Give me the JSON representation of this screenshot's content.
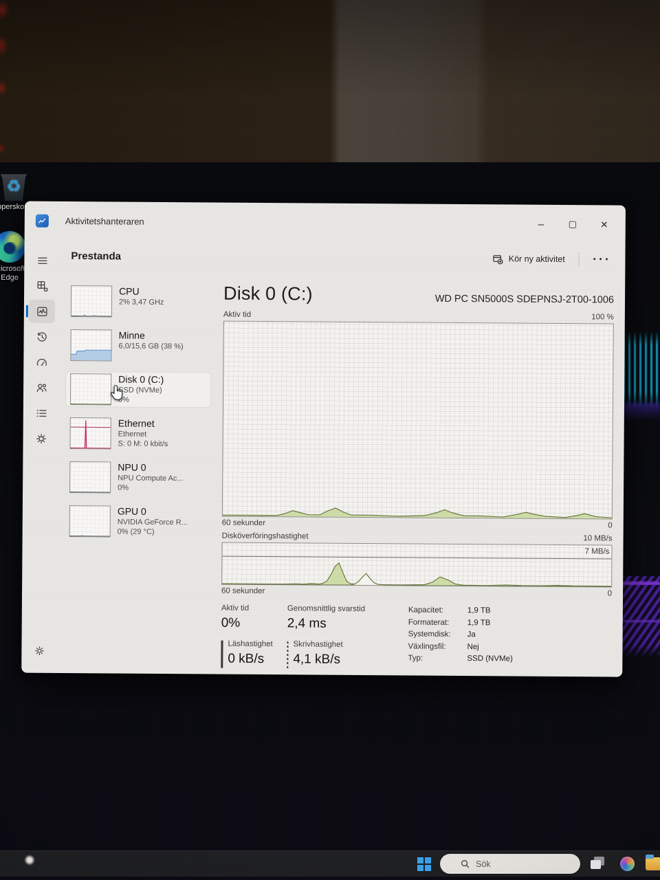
{
  "window": {
    "title": "Aktivitetshanteraren",
    "page_title": "Prestanda",
    "run_new_task_label": "Kör ny aktivitet",
    "more_options_glyph": "• • •",
    "minimize_glyph": "–",
    "maximize_glyph": "▢",
    "close_glyph": "×"
  },
  "nav": {
    "items": [
      "menu",
      "processes",
      "performance",
      "app-history",
      "startup-apps",
      "users",
      "details",
      "services",
      "settings"
    ],
    "selected": "performance"
  },
  "cards": [
    {
      "title": "CPU",
      "line1": "2% 3,47 GHz",
      "line2": ""
    },
    {
      "title": "Minne",
      "line1": "6,0/15,6 GB (38 %)",
      "line2": ""
    },
    {
      "title": "Disk 0 (C:)",
      "line1": "SSD (NVMe)",
      "line2": "0%"
    },
    {
      "title": "Ethernet",
      "line1": "Ethernet",
      "line2": "S: 0 M: 0 kbit/s"
    },
    {
      "title": "NPU 0",
      "line1": "NPU Compute Ac...",
      "line2": "0%"
    },
    {
      "title": "GPU 0",
      "line1": "NVIDIA GeForce R...",
      "line2": "0% (29 °C)"
    }
  ],
  "detail": {
    "title": "Disk 0 (C:)",
    "device": "WD PC SN5000S SDEPNSJ-2T00-1006",
    "chart1_label": "Aktiv tid",
    "chart1_max": "100 %",
    "chart1_xlabel": "60 sekunder",
    "chart1_min": "0",
    "chart2_label": "Disköverföringshastighet",
    "chart2_max": "10 MB/s",
    "chart2_threshold": "7 MB/s",
    "chart2_xlabel": "60 sekunder",
    "chart2_min": "0",
    "stats_left": [
      {
        "label": "Aktiv tid",
        "value": "0%",
        "indicator": "none"
      },
      {
        "label": "Genomsnittlig svarstid",
        "value": "2,4 ms",
        "indicator": "none"
      },
      {
        "label": "Läshastighet",
        "value": "0 kB/s",
        "indicator": "solid"
      },
      {
        "label": "Skrivhastighet",
        "value": "4,1 kB/s",
        "indicator": "dotted"
      }
    ],
    "stats_right": [
      {
        "label": "Kapacitet:",
        "value": "1,9 TB"
      },
      {
        "label": "Formaterat:",
        "value": "1,9 TB"
      },
      {
        "label": "Systemdisk:",
        "value": "Ja"
      },
      {
        "label": "Växlingsfil:",
        "value": "Nej"
      },
      {
        "label": "Typ:",
        "value": "SSD (NVMe)"
      }
    ]
  },
  "desktop": {
    "icons": [
      {
        "label": "Papperskorgen",
        "glyph": "♻"
      },
      {
        "label": "Microsoft Edge"
      }
    ]
  },
  "taskbar": {
    "search_placeholder": "Sök"
  },
  "colors": {
    "accent": "#0067c0",
    "disk_green_fill": "rgba(201,216,156,0.85)",
    "disk_green_line": "#5f7036",
    "memory_fill": "rgba(173,201,230,0.9)",
    "memory_line": "#6699cc",
    "ethernet_line": "#c2185b"
  },
  "chart_data": [
    {
      "id": "activity",
      "type": "area",
      "title": "Aktiv tid",
      "xlabel": "60 sekunder",
      "ylabel": "%",
      "ylim": [
        0,
        100
      ],
      "series": [
        {
          "name": "active-time",
          "type": "area",
          "color": "#5f7036",
          "fill": "rgba(201,216,156,0.85)",
          "points": [
            [
              0,
              0.5
            ],
            [
              14,
              0.5
            ],
            [
              16,
              1.5
            ],
            [
              18,
              3
            ],
            [
              20,
              2
            ],
            [
              22,
              1
            ],
            [
              25,
              1
            ],
            [
              27,
              3
            ],
            [
              29,
              4.5
            ],
            [
              31,
              2.5
            ],
            [
              33,
              1
            ],
            [
              38,
              1
            ],
            [
              45,
              0.5
            ],
            [
              52,
              1
            ],
            [
              55,
              2.5
            ],
            [
              57,
              4
            ],
            [
              59,
              2.5
            ],
            [
              62,
              1
            ],
            [
              66,
              1
            ],
            [
              72,
              0.5
            ],
            [
              76,
              2
            ],
            [
              78,
              3
            ],
            [
              80,
              2
            ],
            [
              83,
              1
            ],
            [
              88,
              0.5
            ],
            [
              91,
              1.5
            ],
            [
              93,
              2.5
            ],
            [
              96,
              1
            ],
            [
              100,
              0.5
            ]
          ]
        }
      ]
    },
    {
      "id": "transfer",
      "type": "area",
      "title": "Disköverföringshastighet",
      "xlabel": "60 sekunder",
      "ylabel": "MB/s",
      "ylim": [
        0,
        10
      ],
      "threshold_value": 7,
      "series": [
        {
          "name": "write-speed",
          "type": "area",
          "color": "#5f7036",
          "fill": "rgba(201,216,156,0.85)",
          "points": [
            [
              0,
              1
            ],
            [
              16,
              1
            ],
            [
              19,
              2
            ],
            [
              21,
              1.5
            ],
            [
              23,
              3
            ],
            [
              25,
              2
            ],
            [
              26,
              4
            ],
            [
              27,
              10
            ],
            [
              28,
              26
            ],
            [
              29,
              45
            ],
            [
              30,
              53
            ],
            [
              31,
              30
            ],
            [
              32,
              9
            ],
            [
              33,
              3
            ],
            [
              35,
              1.5
            ],
            [
              46,
              1
            ],
            [
              52,
              2
            ],
            [
              54,
              8
            ],
            [
              56,
              21
            ],
            [
              58,
              14
            ],
            [
              60,
              4
            ],
            [
              62,
              1.5
            ],
            [
              68,
              1
            ],
            [
              73,
              2.5
            ],
            [
              77,
              1.5
            ],
            [
              83,
              1.5
            ],
            [
              86,
              2.5
            ],
            [
              90,
              1.5
            ],
            [
              100,
              1.5
            ]
          ]
        },
        {
          "name": "read-speed",
          "type": "area",
          "color": "#5f7036",
          "fill": "rgba(245,244,241,0.95)",
          "points": [
            [
              0,
              0
            ],
            [
              33,
              0
            ],
            [
              34,
              2
            ],
            [
              35,
              8
            ],
            [
              36,
              19
            ],
            [
              37,
              28
            ],
            [
              38,
              16
            ],
            [
              39,
              6
            ],
            [
              40,
              2
            ],
            [
              42,
              0
            ],
            [
              100,
              0
            ]
          ]
        }
      ]
    },
    {
      "id": "mini-cpu",
      "type": "line",
      "series": [
        {
          "name": "cpu-usage",
          "type": "line",
          "color": "#5a636b",
          "points": [
            [
              0,
              1
            ],
            [
              30,
              1
            ],
            [
              33,
              4
            ],
            [
              36,
              1
            ],
            [
              55,
              1
            ],
            [
              58,
              3
            ],
            [
              61,
              1
            ],
            [
              100,
              1
            ]
          ]
        }
      ]
    },
    {
      "id": "mini-memory",
      "type": "area",
      "series": [
        {
          "name": "memory-used",
          "type": "area",
          "color": "#6699cc",
          "fill": "rgba(173,201,230,0.9)",
          "points": [
            [
              0,
              20
            ],
            [
              13,
              20
            ],
            [
              15,
              31
            ],
            [
              34,
              31
            ],
            [
              36,
              34
            ],
            [
              100,
              34
            ]
          ]
        }
      ]
    },
    {
      "id": "mini-disk",
      "type": "line",
      "series": [
        {
          "name": "disk-active",
          "type": "line",
          "color": "#6b7a48",
          "points": [
            [
              0,
              1
            ],
            [
              100,
              1
            ]
          ]
        }
      ]
    },
    {
      "id": "mini-ethernet",
      "type": "line",
      "series": [
        {
          "name": "eth-scale-line",
          "type": "line",
          "color": "#b3486b",
          "points": [
            [
              0,
              70
            ],
            [
              100,
              70
            ]
          ]
        },
        {
          "name": "eth-spike",
          "type": "area",
          "color": "#c2185b",
          "fill": "rgba(194,24,91,0.35)",
          "points": [
            [
              0,
              1
            ],
            [
              36,
              1
            ],
            [
              38,
              93
            ],
            [
              40,
              1
            ],
            [
              100,
              1
            ]
          ]
        }
      ]
    },
    {
      "id": "mini-npu",
      "type": "line",
      "series": [
        {
          "name": "npu-usage",
          "type": "line",
          "color": "#5a636b",
          "points": [
            [
              0,
              1
            ],
            [
              100,
              1
            ]
          ]
        }
      ]
    },
    {
      "id": "mini-gpu",
      "type": "line",
      "series": [
        {
          "name": "gpu-usage",
          "type": "line",
          "color": "#5a636b",
          "points": [
            [
              0,
              1
            ],
            [
              28,
              1
            ],
            [
              31,
              2.5
            ],
            [
              34,
              1
            ],
            [
              100,
              1
            ]
          ]
        }
      ]
    }
  ]
}
